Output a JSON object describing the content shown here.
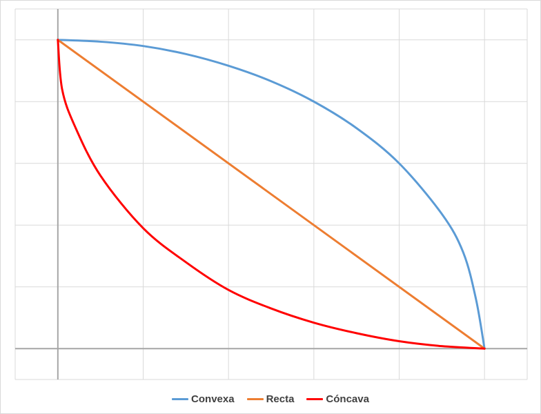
{
  "chart_data": {
    "type": "line",
    "title": "",
    "xlabel": "",
    "ylabel": "",
    "xlim": [
      -0.5,
      5.5
    ],
    "ylim": [
      -0.5,
      5.5
    ],
    "grid": true,
    "legend_position": "bottom",
    "series": [
      {
        "name": "Convexa",
        "color": "#5b9bd5",
        "x": [
          0,
          0.5,
          1,
          1.5,
          2,
          2.5,
          3,
          3.5,
          4,
          4.5,
          4.75,
          4.9,
          5
        ],
        "y": [
          5,
          4.97,
          4.9,
          4.77,
          4.58,
          4.33,
          4.0,
          3.57,
          3.0,
          2.18,
          1.56,
          0.8,
          0
        ]
      },
      {
        "name": "Recta",
        "color": "#ed7d31",
        "x": [
          0,
          5
        ],
        "y": [
          5,
          0
        ]
      },
      {
        "name": "Cóncava",
        "color": "#ff0000",
        "x": [
          0,
          0.05,
          0.2,
          0.5,
          1,
          1.5,
          2,
          2.5,
          3,
          3.5,
          4,
          4.5,
          5
        ],
        "y": [
          5,
          4.2,
          3.6,
          2.8,
          1.95,
          1.4,
          0.95,
          0.65,
          0.42,
          0.25,
          0.12,
          0.04,
          0
        ]
      }
    ]
  }
}
